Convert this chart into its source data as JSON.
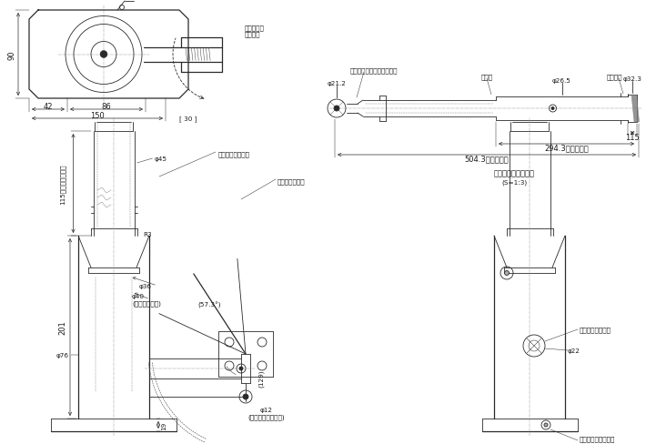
{
  "bg_color": "#ffffff",
  "line_color": "#2a2a2a",
  "dim_color": "#2a2a2a",
  "text_color": "#1a1a1a",
  "top_view_label": "操作レバー\n回転方向",
  "dim_90": "90",
  "dim_42": "42",
  "dim_86": "86",
  "dim_150": "150",
  "dim_30": "[ 30 ]",
  "dim_45": "φ45",
  "dim_R3": "R3",
  "dim_115_stroke": "115（ストローク）",
  "dim_201": "201",
  "dim_19": "19",
  "dim_36": "φ36",
  "dim_40": "φ40\n(シリンダ内径)",
  "dim_76": "φ76",
  "dim_12": "φ12\n(ポンプピストン径)",
  "dim_129": "129",
  "dim_57_3": "(57.3°)",
  "label_oil": "オイルフィリング",
  "label_lever_socket": "レバーソケット",
  "lever_label1": "リリーズスクリュウ差込口",
  "lever_label2": "伸縮式",
  "lever_label3": "ストッパ",
  "dim_21_2": "φ21.2",
  "dim_26_5": "φ26.5",
  "dim_32_3": "φ32.3",
  "dim_115_lever": "115",
  "dim_294_3": "294.3（最短長）",
  "dim_504_3": "504.3（最伸長）",
  "lever_title": "専用操作レバー詳細",
  "lever_scale": "(S=1:3)",
  "right_label1": "操作レバー差込口",
  "right_label2": "φ22",
  "right_label3": "リリーズスクリュウ"
}
